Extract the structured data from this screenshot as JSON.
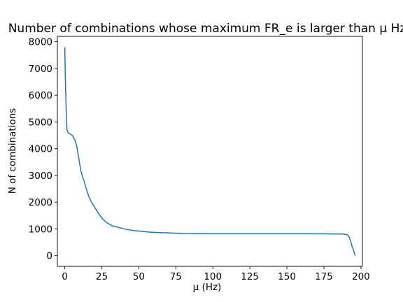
{
  "chart_data": {
    "type": "line",
    "title": "Number of combinations whose maximum FR_e is larger than μ Hz",
    "xlabel": "μ (Hz)",
    "ylabel": "N of combinations",
    "xlim": [
      -5,
      201
    ],
    "ylim": [
      -400,
      8200
    ],
    "xticks": [
      0,
      25,
      50,
      75,
      100,
      125,
      150,
      175,
      200
    ],
    "yticks": [
      0,
      1000,
      2000,
      3000,
      4000,
      5000,
      6000,
      7000,
      8000
    ],
    "grid": false,
    "series": [
      {
        "color": "#1f77b4",
        "x": [
          0,
          0.5,
          1,
          1.5,
          2,
          3,
          4,
          5,
          6,
          7,
          8,
          9,
          10,
          11,
          12,
          13,
          14,
          15,
          16,
          17,
          18,
          20,
          22,
          24,
          26,
          28,
          30,
          32,
          34,
          36,
          40,
          45,
          50,
          55,
          60,
          70,
          80,
          90,
          100,
          120,
          140,
          160,
          175,
          185,
          188,
          190,
          191,
          192,
          193,
          194,
          195,
          196
        ],
        "y": [
          7780,
          6300,
          5350,
          4700,
          4620,
          4560,
          4540,
          4500,
          4420,
          4300,
          4120,
          3800,
          3450,
          3150,
          2950,
          2800,
          2600,
          2420,
          2250,
          2120,
          2000,
          1830,
          1650,
          1480,
          1350,
          1250,
          1180,
          1120,
          1090,
          1060,
          1000,
          950,
          920,
          890,
          870,
          850,
          830,
          825,
          820,
          820,
          820,
          820,
          815,
          810,
          805,
          790,
          770,
          700,
          550,
          350,
          200,
          10
        ]
      }
    ]
  }
}
